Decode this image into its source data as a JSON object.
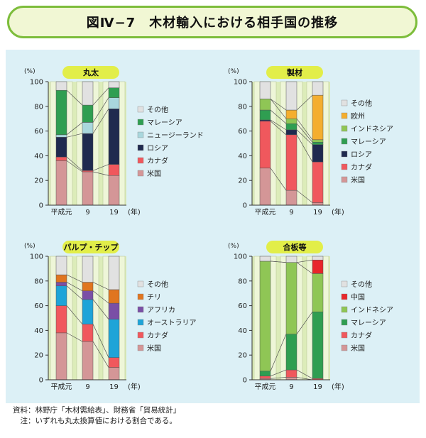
{
  "title": "図Ⅳ−7　木材輸入における相手国の推移",
  "source_lines": [
    "資料：林野庁「木材需給表」、財務省「貿易統計」",
    "　注：いずれも丸太換算値における割合である。"
  ],
  "chart_data": [
    {
      "type": "bar",
      "title": "丸太",
      "ylabel": "(%)",
      "xunit": "(年)",
      "ylim": [
        0,
        100
      ],
      "yticks": [
        0,
        20,
        40,
        60,
        80,
        100
      ],
      "categories": [
        "平成元",
        "9",
        "19"
      ],
      "series": [
        {
          "name": "米国",
          "color": "#d49697",
          "values": [
            36,
            27,
            24
          ]
        },
        {
          "name": "カナダ",
          "color": "#f0585d",
          "values": [
            3,
            1,
            9
          ]
        },
        {
          "name": "ロシア",
          "color": "#1f2a4f",
          "values": [
            16,
            30,
            45
          ]
        },
        {
          "name": "ニュージーランド",
          "color": "#a9d7dd",
          "values": [
            2,
            9,
            9
          ]
        },
        {
          "name": "マレーシア",
          "color": "#2f9e51",
          "values": [
            36,
            14,
            8
          ]
        },
        {
          "name": "その他",
          "color": "#e1e1e1",
          "values": [
            7,
            19,
            5
          ]
        }
      ]
    },
    {
      "type": "bar",
      "title": "製材",
      "ylabel": "(%)",
      "xunit": "(年)",
      "ylim": [
        0,
        100
      ],
      "yticks": [
        0,
        20,
        40,
        60,
        80,
        100
      ],
      "categories": [
        "平成元",
        "9",
        "19"
      ],
      "series": [
        {
          "name": "米国",
          "color": "#d49697",
          "values": [
            30,
            12,
            2
          ]
        },
        {
          "name": "カナダ",
          "color": "#f0585d",
          "values": [
            38,
            45,
            33
          ]
        },
        {
          "name": "ロシア",
          "color": "#1f2a4f",
          "values": [
            1,
            4,
            14
          ]
        },
        {
          "name": "マレーシア",
          "color": "#2f9e51",
          "values": [
            8,
            5,
            2
          ]
        },
        {
          "name": "インドネシア",
          "color": "#8fc655",
          "values": [
            9,
            4,
            2
          ]
        },
        {
          "name": "欧州",
          "color": "#f4ae2f",
          "values": [
            0,
            7,
            36
          ]
        },
        {
          "name": "その他",
          "color": "#e1e1e1",
          "values": [
            14,
            23,
            11
          ]
        }
      ]
    },
    {
      "type": "bar",
      "title": "パルプ・チップ",
      "ylabel": "(%)",
      "xunit": "(年)",
      "ylim": [
        0,
        100
      ],
      "yticks": [
        0,
        20,
        40,
        60,
        80,
        100
      ],
      "categories": [
        "平成元",
        "9",
        "19"
      ],
      "series": [
        {
          "name": "米国",
          "color": "#d49697",
          "values": [
            38,
            31,
            10
          ]
        },
        {
          "name": "カナダ",
          "color": "#f0585d",
          "values": [
            22,
            14,
            8
          ]
        },
        {
          "name": "オーストラリア",
          "color": "#1ea4d8",
          "values": [
            16,
            20,
            31
          ]
        },
        {
          "name": "アフリカ",
          "color": "#7a4fa6",
          "values": [
            3,
            7,
            13
          ]
        },
        {
          "name": "チリ",
          "color": "#e0751f",
          "values": [
            6,
            7,
            11
          ]
        },
        {
          "name": "その他",
          "color": "#e1e1e1",
          "values": [
            15,
            21,
            27
          ]
        }
      ]
    },
    {
      "type": "bar",
      "title": "合板等",
      "ylabel": "(%)",
      "xunit": "(年)",
      "ylim": [
        0,
        100
      ],
      "yticks": [
        0,
        20,
        40,
        60,
        80,
        100
      ],
      "categories": [
        "平成元",
        "9",
        "19"
      ],
      "series": [
        {
          "name": "米国",
          "color": "#d49697",
          "values": [
            1,
            2,
            0
          ]
        },
        {
          "name": "カナダ",
          "color": "#f0585d",
          "values": [
            2,
            6,
            1
          ]
        },
        {
          "name": "マレーシア",
          "color": "#2f9e51",
          "values": [
            4,
            29,
            54
          ]
        },
        {
          "name": "インドネシア",
          "color": "#8fc655",
          "values": [
            89,
            58,
            31
          ]
        },
        {
          "name": "中国",
          "color": "#e8262a",
          "values": [
            0,
            0,
            11
          ]
        },
        {
          "name": "その他",
          "color": "#e1e1e1",
          "values": [
            4,
            5,
            3
          ]
        }
      ]
    }
  ]
}
